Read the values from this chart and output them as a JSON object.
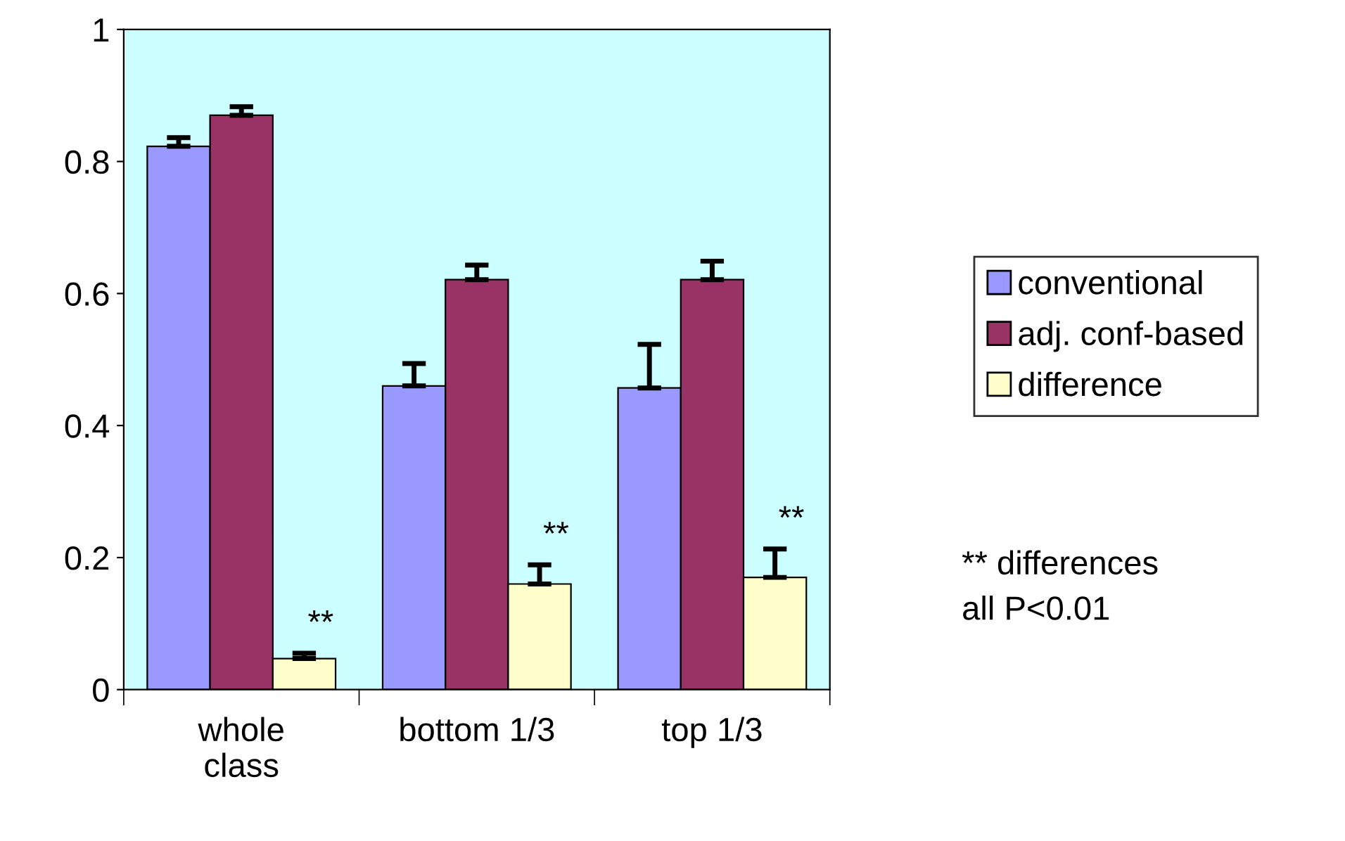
{
  "chart_data": {
    "type": "bar",
    "categories": [
      "whole\nclass",
      "bottom 1/3",
      "top 1/3"
    ],
    "series": [
      {
        "name": "conventional",
        "color": "#9999ff",
        "values": [
          0.823,
          0.46,
          0.457
        ],
        "errors": [
          [
            0.823,
            0.836
          ],
          [
            0.46,
            0.494
          ],
          [
            0.457,
            0.523
          ]
        ]
      },
      {
        "name": "adj. conf-based",
        "color": "#993366",
        "values": [
          0.87,
          0.621,
          0.621
        ],
        "errors": [
          [
            0.87,
            0.883
          ],
          [
            0.621,
            0.643
          ],
          [
            0.621,
            0.649
          ]
        ]
      },
      {
        "name": "difference",
        "color": "#ffffcc",
        "values": [
          0.047,
          0.16,
          0.17
        ],
        "errors": [
          [
            0.047,
            0.055
          ],
          [
            0.16,
            0.189
          ],
          [
            0.17,
            0.213
          ]
        ]
      }
    ],
    "ylim": [
      0,
      1
    ],
    "yticks": [
      0,
      0.2,
      0.4,
      0.6,
      0.8,
      1
    ],
    "grid": false,
    "legend": "right",
    "annotations": [
      "**",
      "**",
      "**",
      "** differences\nall P<0.01"
    ]
  }
}
